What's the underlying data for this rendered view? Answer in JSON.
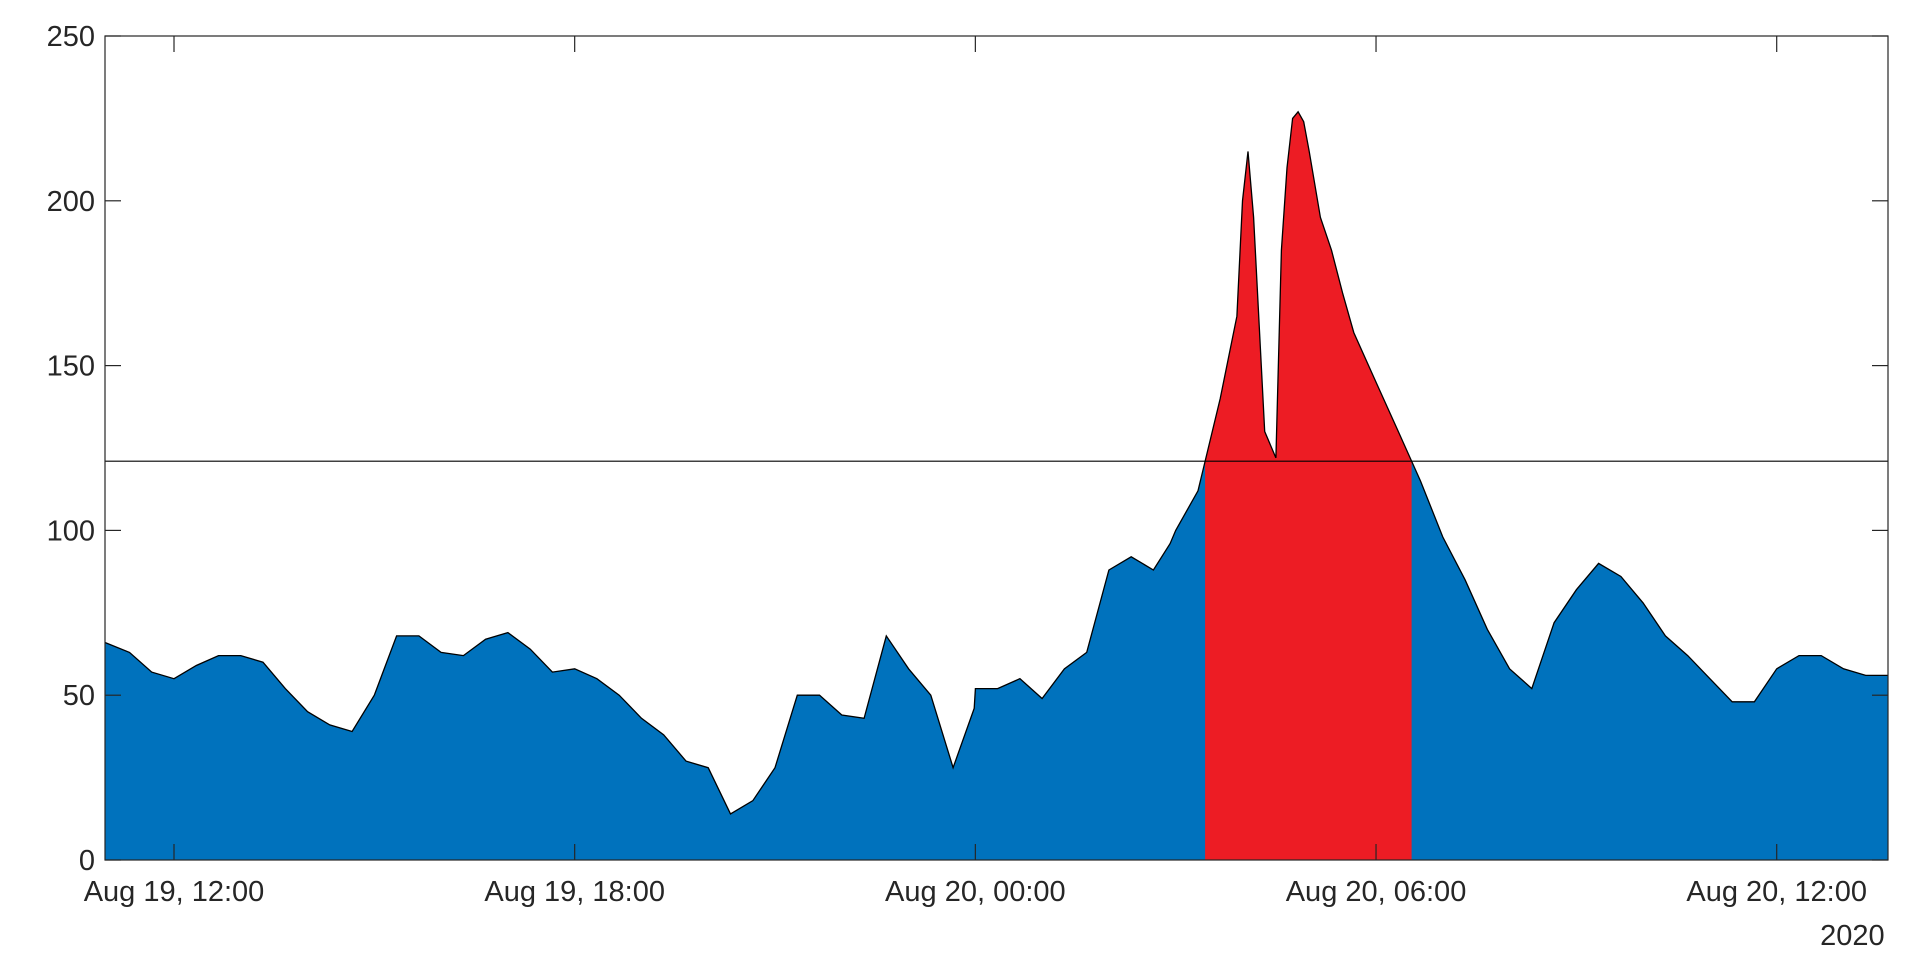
{
  "chart_data": {
    "type": "area",
    "title": "",
    "xlabel": "",
    "ylabel": "",
    "ylim": [
      0,
      250
    ],
    "xlim": [
      "2020-08-19 10:58",
      "2020-08-20 13:40"
    ],
    "grid": false,
    "threshold": 121,
    "colors": {
      "below": "#0072BD",
      "above": "#ED1C24",
      "line": "#000000",
      "axis": "#262626"
    },
    "y_ticks": [
      0,
      50,
      100,
      150,
      200,
      250
    ],
    "y_tick_labels": [
      "0",
      "50",
      "100",
      "150",
      "200",
      "250"
    ],
    "x_ticks": [
      "2020-08-19 12:00",
      "2020-08-19 18:00",
      "2020-08-20 00:00",
      "2020-08-20 06:00",
      "2020-08-20 12:00"
    ],
    "x_tick_labels": [
      "Aug 19, 12:00",
      "Aug 19, 18:00",
      "Aug 20, 00:00",
      "Aug 20, 06:00",
      "Aug 20, 12:00"
    ],
    "x_secondary_label": "2020",
    "series": [
      {
        "x": [
          "2020-08-19 10:58",
          "2020-08-19 11:20",
          "2020-08-19 11:40",
          "2020-08-19 12:00",
          "2020-08-19 12:20",
          "2020-08-19 12:40",
          "2020-08-19 13:00",
          "2020-08-19 13:20",
          "2020-08-19 13:40",
          "2020-08-19 14:00",
          "2020-08-19 14:20",
          "2020-08-19 14:40",
          "2020-08-19 15:00",
          "2020-08-19 15:20",
          "2020-08-19 15:40",
          "2020-08-19 16:00",
          "2020-08-19 16:20",
          "2020-08-19 16:40",
          "2020-08-19 17:00",
          "2020-08-19 17:20",
          "2020-08-19 17:40",
          "2020-08-19 18:00",
          "2020-08-19 18:20",
          "2020-08-19 18:40",
          "2020-08-19 19:00",
          "2020-08-19 19:20",
          "2020-08-19 19:40",
          "2020-08-19 20:00",
          "2020-08-19 20:20",
          "2020-08-19 20:40",
          "2020-08-19 21:00",
          "2020-08-19 21:20",
          "2020-08-19 21:40",
          "2020-08-19 22:00",
          "2020-08-19 22:20",
          "2020-08-19 22:40",
          "2020-08-19 23:00",
          "2020-08-19 23:20",
          "2020-08-19 23:40",
          "2020-08-19 23:59",
          "2020-08-20 00:00",
          "2020-08-20 00:20",
          "2020-08-20 00:40",
          "2020-08-20 01:00",
          "2020-08-20 01:20",
          "2020-08-20 01:40",
          "2020-08-20 02:00",
          "2020-08-20 02:20",
          "2020-08-20 02:40",
          "2020-08-20 02:55",
          "2020-08-20 03:00",
          "2020-08-20 03:20",
          "2020-08-20 03:40",
          "2020-08-20 03:55",
          "2020-08-20 04:00",
          "2020-08-20 04:05",
          "2020-08-20 04:10",
          "2020-08-20 04:20",
          "2020-08-20 04:30",
          "2020-08-20 04:35",
          "2020-08-20 04:40",
          "2020-08-20 04:45",
          "2020-08-20 04:50",
          "2020-08-20 04:55",
          "2020-08-20 05:00",
          "2020-08-20 05:05",
          "2020-08-20 05:10",
          "2020-08-20 05:20",
          "2020-08-20 05:30",
          "2020-08-20 05:40",
          "2020-08-20 06:00",
          "2020-08-20 06:20",
          "2020-08-20 06:40",
          "2020-08-20 07:00",
          "2020-08-20 07:20",
          "2020-08-20 07:40",
          "2020-08-20 08:00",
          "2020-08-20 08:20",
          "2020-08-20 08:40",
          "2020-08-20 09:00",
          "2020-08-20 09:20",
          "2020-08-20 09:40",
          "2020-08-20 10:00",
          "2020-08-20 10:20",
          "2020-08-20 10:40",
          "2020-08-20 11:00",
          "2020-08-20 11:20",
          "2020-08-20 11:40",
          "2020-08-20 12:00",
          "2020-08-20 12:20",
          "2020-08-20 12:40",
          "2020-08-20 13:00",
          "2020-08-20 13:20",
          "2020-08-20 13:40"
        ],
        "values": [
          66,
          63,
          57,
          55,
          59,
          62,
          62,
          60,
          52,
          45,
          41,
          39,
          50,
          68,
          68,
          63,
          62,
          67,
          69,
          64,
          57,
          58,
          55,
          50,
          43,
          38,
          30,
          28,
          14,
          18,
          28,
          50,
          50,
          44,
          43,
          68,
          58,
          50,
          28,
          46,
          52,
          52,
          55,
          49,
          58,
          63,
          88,
          92,
          88,
          96,
          100,
          112,
          140,
          165,
          200,
          215,
          195,
          130,
          122,
          185,
          210,
          225,
          227,
          224,
          215,
          205,
          195,
          185,
          172,
          160,
          145,
          130,
          115,
          98,
          85,
          70,
          58,
          52,
          72,
          82,
          90,
          86,
          78,
          68,
          62,
          55,
          48,
          48,
          58,
          62,
          62,
          58,
          56,
          56
        ]
      }
    ]
  }
}
